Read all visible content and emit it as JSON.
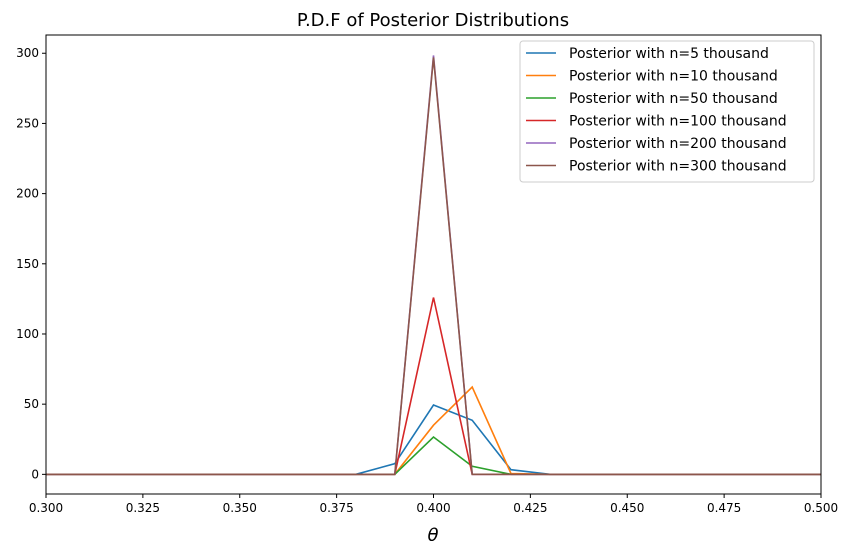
{
  "chart_data": {
    "type": "line",
    "title": "P.D.F of Posterior Distributions",
    "xlabel": "θ",
    "ylabel": "",
    "xlim": [
      0.3,
      0.5
    ],
    "ylim": [
      -14,
      313
    ],
    "xticks": [
      "0.300",
      "0.325",
      "0.350",
      "0.375",
      "0.400",
      "0.425",
      "0.450",
      "0.475",
      "0.500"
    ],
    "yticks": [
      "0",
      "50",
      "100",
      "150",
      "200",
      "250",
      "300"
    ],
    "grid": false,
    "legend_position": "top-right",
    "x": [
      0.3,
      0.31,
      0.32,
      0.33,
      0.34,
      0.35,
      0.36,
      0.37,
      0.38,
      0.39,
      0.4,
      0.41,
      0.42,
      0.43,
      0.44,
      0.45,
      0.46,
      0.47,
      0.48,
      0.49,
      0.5
    ],
    "series": [
      {
        "name": "Posterior with n=5 thousand",
        "color": "#1f77b4",
        "values": [
          0,
          0,
          0,
          0,
          0,
          0,
          0,
          0,
          0,
          7.6,
          49.4,
          38.5,
          3.3,
          0,
          0,
          0,
          0,
          0,
          0,
          0,
          0
        ]
      },
      {
        "name": "Posterior with n=10 thousand",
        "color": "#ff7f0e",
        "values": [
          0,
          0,
          0,
          0,
          0,
          0,
          0,
          0,
          0,
          0,
          35,
          62.2,
          0.5,
          0,
          0,
          0,
          0,
          0,
          0,
          0,
          0
        ]
      },
      {
        "name": "Posterior with n=50 thousand",
        "color": "#2ca02c",
        "values": [
          0,
          0,
          0,
          0,
          0,
          0,
          0,
          0,
          0,
          0,
          26.6,
          5.7,
          0,
          0,
          0,
          0,
          0,
          0,
          0,
          0,
          0
        ]
      },
      {
        "name": "Posterior with n=100 thousand",
        "color": "#d62728",
        "values": [
          0,
          0,
          0,
          0,
          0,
          0,
          0,
          0,
          0,
          0,
          126,
          0,
          0,
          0,
          0,
          0,
          0,
          0,
          0,
          0,
          0
        ]
      },
      {
        "name": "Posterior with n=200 thousand",
        "color": "#9467bd",
        "values": [
          0,
          0,
          0,
          0,
          0,
          0,
          0,
          0,
          0,
          0,
          298.5,
          0,
          0,
          0,
          0,
          0,
          0,
          0,
          0,
          0,
          0
        ]
      },
      {
        "name": "Posterior with n=300 thousand",
        "color": "#8c564b",
        "values": [
          0,
          0,
          0,
          0,
          0,
          0,
          0,
          0,
          0,
          0,
          297,
          0,
          0,
          0,
          0,
          0,
          0,
          0,
          0,
          0,
          0
        ]
      }
    ]
  }
}
